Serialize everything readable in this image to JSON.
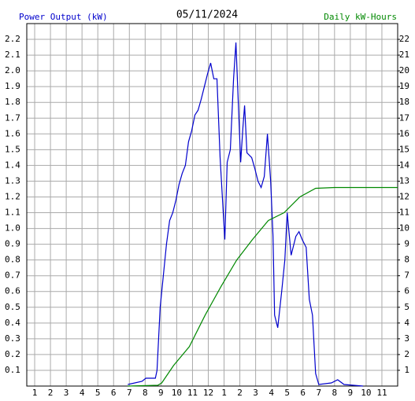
{
  "chart_data": {
    "type": "line",
    "title": "05/11/2024",
    "y_label": "Power Output (kW)",
    "y2_label": "Daily kW-Hours",
    "xlim": [
      0.5,
      24
    ],
    "xticks": [
      1,
      2,
      3,
      4,
      5,
      6,
      7,
      8,
      9,
      10,
      11,
      12,
      {
        "value": 13,
        "label": "1"
      },
      {
        "value": 14,
        "label": "2"
      },
      {
        "value": 15,
        "label": "3"
      },
      {
        "value": 16,
        "label": "4"
      },
      {
        "value": 17,
        "label": "5"
      },
      {
        "value": 18,
        "label": "6"
      },
      {
        "value": 19,
        "label": "7"
      },
      {
        "value": 20,
        "label": "8"
      },
      {
        "value": 21,
        "label": "9"
      },
      {
        "value": 22,
        "label": "10"
      },
      {
        "value": 23,
        "label": "11"
      }
    ],
    "ylim": [
      0,
      2.3
    ],
    "yticks": [
      0.1,
      0.2,
      0.3,
      0.4,
      0.5,
      0.6,
      0.7,
      0.8,
      0.9,
      {
        "value": 1.0,
        "label": "1.0"
      },
      1.1,
      1.2,
      1.3,
      1.4,
      1.5,
      1.6,
      1.7,
      1.8,
      1.9,
      {
        "value": 2.0,
        "label": "2.0"
      },
      2.1,
      2.2
    ],
    "y2lim": [
      0,
      23
    ],
    "y2ticks": [
      1,
      2,
      3,
      4,
      5,
      6,
      7,
      8,
      9,
      10,
      11,
      12,
      13,
      14,
      15,
      16,
      17,
      18,
      19,
      20,
      21,
      22
    ],
    "grid": true,
    "series": [
      {
        "name": "Power Output (kW)",
        "color": "#0000cc",
        "axis": "y",
        "x": [
          6.9,
          7.8,
          8.05,
          8.65,
          8.75,
          8.95,
          9.15,
          9.35,
          9.55,
          9.75,
          9.95,
          10.15,
          10.35,
          10.55,
          10.75,
          10.95,
          11.15,
          11.35,
          11.55,
          11.75,
          11.95,
          12.15,
          12.35,
          12.55,
          12.75,
          12.95,
          13.05,
          13.2,
          13.4,
          13.6,
          13.75,
          13.9,
          14.05,
          14.2,
          14.3,
          14.45,
          14.75,
          14.95,
          15.15,
          15.35,
          15.55,
          15.75,
          15.95,
          16.1,
          16.2,
          16.4,
          16.65,
          16.85,
          17.0,
          17.25,
          17.55,
          17.75,
          17.95,
          18.2,
          18.4,
          18.6,
          18.8,
          19.0,
          19.8,
          20.2,
          20.6,
          21.8
        ],
        "values": [
          0.01,
          0.03,
          0.05,
          0.05,
          0.1,
          0.5,
          0.7,
          0.9,
          1.05,
          1.1,
          1.18,
          1.28,
          1.35,
          1.4,
          1.55,
          1.62,
          1.72,
          1.75,
          1.82,
          1.9,
          1.98,
          2.05,
          1.95,
          1.95,
          1.45,
          1.1,
          0.93,
          1.42,
          1.5,
          1.95,
          2.18,
          1.8,
          1.42,
          1.65,
          1.78,
          1.48,
          1.45,
          1.38,
          1.3,
          1.26,
          1.33,
          1.6,
          1.3,
          0.95,
          0.45,
          0.37,
          0.6,
          0.8,
          1.1,
          0.83,
          0.95,
          0.98,
          0.93,
          0.88,
          0.55,
          0.45,
          0.08,
          0.01,
          0.02,
          0.04,
          0.01,
          0.0
        ]
      },
      {
        "name": "Daily kW-Hours",
        "color": "#008800",
        "axis": "y2",
        "x": [
          6.9,
          8.8,
          9.05,
          9.8,
          10.8,
          11.8,
          12.8,
          13.8,
          14.8,
          15.8,
          16.8,
          17.8,
          18.8,
          20,
          24
        ],
        "values": [
          0,
          0.05,
          0.2,
          1.3,
          2.5,
          4.5,
          6.3,
          8.0,
          9.3,
          10.5,
          11.0,
          12.0,
          12.55,
          12.6,
          12.6
        ]
      }
    ]
  }
}
